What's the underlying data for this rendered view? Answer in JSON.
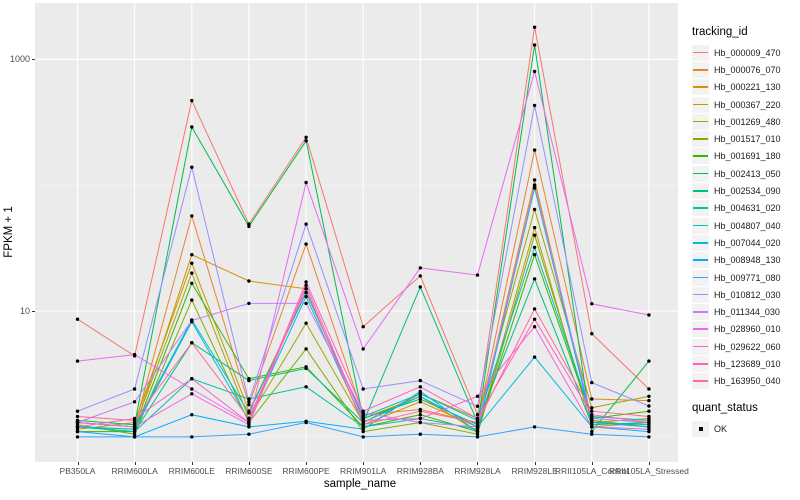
{
  "figure": {
    "y_axis": {
      "title": "FPKM + 1",
      "tick_labels": [
        "1000",
        "10"
      ],
      "tick_values": [
        1000,
        10
      ]
    },
    "x_axis": {
      "title": "sample_name"
    },
    "legend": {
      "tracking_title": "tracking_id",
      "quant_title": "quant_status",
      "quant_items": [
        {
          "label": "OK"
        }
      ]
    },
    "colors": {
      "panel_background": "#EBEBEB",
      "gridline": "#FFFFFF",
      "legend_key_background": "#F2F2F2",
      "tick_label": "#4D4D4D",
      "point": "#000000"
    }
  },
  "chart_data": {
    "type": "line",
    "title": "",
    "xlabel": "sample_name",
    "ylabel": "FPKM + 1",
    "y_scale": "log10",
    "ylim": [
      0.6,
      2800
    ],
    "grid": {
      "major_y": [
        10,
        1000
      ],
      "minor_y": [
        1,
        100
      ],
      "major_x": "every category"
    },
    "legend_position": "right",
    "point_style": "black dot (quant_status OK)",
    "x": [
      "PB350LA",
      "RRIM600LA",
      "RRIM600LE",
      "RRIM600SE",
      "RRIM600PE",
      "RRIM901LA",
      "RRIM928BA",
      "RRIM928LA",
      "RRIM928LE",
      "RRII105LA_Control",
      "RRII105LA_Stressed"
    ],
    "series": [
      {
        "name": "Hb_000009_470",
        "color": "#F8766D",
        "values": [
          8.6,
          4.4,
          470,
          49,
          240,
          7.5,
          19,
          1.5,
          1800,
          6.6,
          2.4
        ]
      },
      {
        "name": "Hb_000076_070",
        "color": "#EA8331",
        "values": [
          1.3,
          1.2,
          57,
          1.8,
          34,
          1.5,
          1.65,
          1.3,
          190,
          2.0,
          1.94
        ]
      },
      {
        "name": "Hb_000221_130",
        "color": "#D89000",
        "values": [
          1.2,
          1.15,
          28,
          17.3,
          15,
          1.25,
          1.9,
          1.2,
          110,
          1.3,
          1.4
        ]
      },
      {
        "name": "Hb_000367_220",
        "color": "#C09B00",
        "values": [
          1.15,
          1.3,
          24,
          1.6,
          14,
          1.4,
          2.1,
          1.1,
          46,
          1.2,
          1.3
        ]
      },
      {
        "name": "Hb_001269_480",
        "color": "#A3A500",
        "values": [
          1.3,
          1.2,
          20,
          1.4,
          8.0,
          1.3,
          2.2,
          1.4,
          64,
          1.7,
          2.1
        ]
      },
      {
        "name": "Hb_001517_010",
        "color": "#7CAE00",
        "values": [
          1.25,
          1.05,
          12.2,
          1.3,
          5.0,
          1.1,
          1.3,
          1.05,
          40,
          1.35,
          1.2
        ]
      },
      {
        "name": "Hb_001691_180",
        "color": "#39B600",
        "values": [
          1.1,
          1.1,
          16.6,
          2.9,
          3.6,
          1.2,
          1.5,
          1.1,
          28,
          1.4,
          1.6
        ]
      },
      {
        "name": "Hb_002413_050",
        "color": "#00BB4E",
        "values": [
          1.35,
          1.25,
          290,
          47,
          225,
          1.4,
          2.0,
          1.25,
          1300,
          1.1,
          4.0
        ]
      },
      {
        "name": "Hb_002534_090",
        "color": "#00BF7D",
        "values": [
          1.2,
          1.1,
          5.6,
          2.8,
          3.5,
          1.3,
          15.5,
          1.3,
          18,
          1.25,
          1.3
        ]
      },
      {
        "name": "Hb_004631_020",
        "color": "#00C1A3",
        "values": [
          1.2,
          1.1,
          2.9,
          2.0,
          2.5,
          1.2,
          1.4,
          1.15,
          95,
          1.3,
          1.25
        ]
      },
      {
        "name": "Hb_004807_040",
        "color": "#00BFC4",
        "values": [
          1.3,
          1.2,
          8.5,
          1.55,
          14,
          1.45,
          2.2,
          1.35,
          32,
          1.45,
          1.35
        ]
      },
      {
        "name": "Hb_007044_020",
        "color": "#00BAE0",
        "values": [
          1.2,
          1.15,
          8.2,
          1.35,
          13,
          1.3,
          2.1,
          1.2,
          4.3,
          1.2,
          1.1
        ]
      },
      {
        "name": "Hb_008948_130",
        "color": "#00B0F6",
        "values": [
          1.1,
          1.0,
          1.5,
          1.2,
          1.33,
          1.15,
          2.3,
          1.1,
          100,
          1.3,
          1.2
        ]
      },
      {
        "name": "Hb_009771_080",
        "color": "#35A2FF",
        "values": [
          1.0,
          1.0,
          1.0,
          1.05,
          1.3,
          1.0,
          1.05,
          1.0,
          1.2,
          1.05,
          1.0
        ]
      },
      {
        "name": "Hb_010812_030",
        "color": "#9590FF",
        "values": [
          1.6,
          2.4,
          139,
          1.9,
          49,
          2.4,
          2.8,
          1.75,
          430,
          2.7,
          1.76
        ]
      },
      {
        "name": "Hb_011344_030",
        "color": "#C77CFF",
        "values": [
          1.3,
          1.9,
          8.4,
          11.5,
          11.5,
          1.55,
          1.3,
          1.2,
          100,
          1.4,
          1.3
        ]
      },
      {
        "name": "Hb_028960_010",
        "color": "#E76BF3",
        "values": [
          4.0,
          4.5,
          2.4,
          1.3,
          105,
          5.0,
          22,
          19.3,
          800,
          11.4,
          9.3
        ]
      },
      {
        "name": "Hb_029622_060",
        "color": "#FA62DB",
        "values": [
          1.3,
          1.2,
          2.2,
          1.25,
          16,
          1.35,
          1.4,
          2.1,
          7.5,
          1.2,
          1.15
        ]
      },
      {
        "name": "Hb_123689_010",
        "color": "#FF62BC",
        "values": [
          1.2,
          1.4,
          2.9,
          1.3,
          17,
          1.6,
          2.5,
          1.4,
          8.6,
          1.5,
          1.3
        ]
      },
      {
        "name": "Hb_163950_040",
        "color": "#FF6A98",
        "values": [
          1.45,
          1.35,
          5.6,
          1.4,
          15,
          1.25,
          1.6,
          1.3,
          10.4,
          1.6,
          1.45
        ]
      }
    ]
  }
}
